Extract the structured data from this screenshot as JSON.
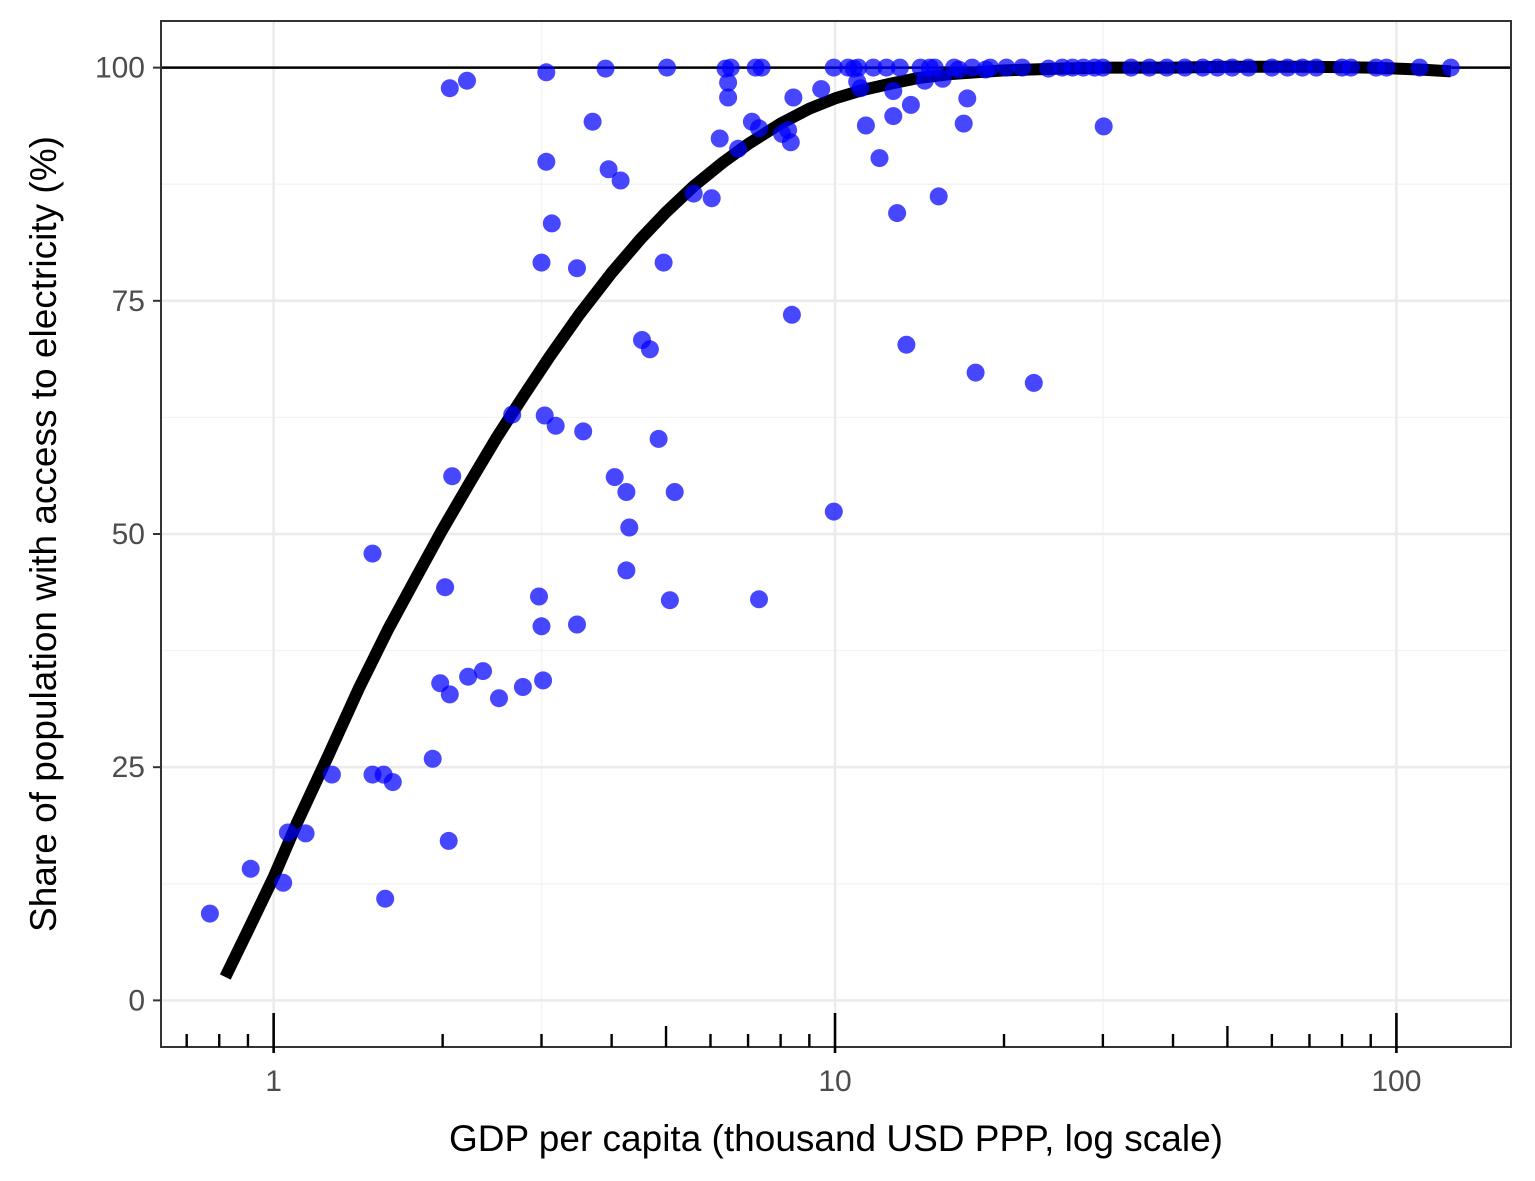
{
  "chart_data": {
    "type": "scatter",
    "title": "",
    "xlabel": "GDP per capita (thousand USD PPP, log scale)",
    "ylabel": "Share of population with access to electricity (%)",
    "x_scale": "log",
    "xlim": [
      0.63,
      160
    ],
    "ylim": [
      -5,
      105
    ],
    "x_ticks": [
      1,
      10,
      100
    ],
    "x_tick_labels": [
      "1",
      "10",
      "100"
    ],
    "y_ticks": [
      0,
      25,
      50,
      75,
      100
    ],
    "y_tick_labels": [
      "0",
      "25",
      "50",
      "75",
      "100"
    ],
    "grid": true,
    "reference_line_y": 100,
    "point_color": "#0000ff",
    "trend_color": "#000000",
    "points": [
      [
        0.77,
        9.3
      ],
      [
        0.91,
        14.1
      ],
      [
        1.04,
        12.6
      ],
      [
        1.06,
        18.0
      ],
      [
        1.14,
        17.9
      ],
      [
        1.27,
        24.2
      ],
      [
        1.5,
        47.9
      ],
      [
        1.5,
        24.2
      ],
      [
        1.57,
        24.2
      ],
      [
        1.58,
        10.9
      ],
      [
        1.63,
        23.4
      ],
      [
        1.92,
        25.9
      ],
      [
        1.98,
        34.0
      ],
      [
        2.02,
        44.3
      ],
      [
        2.05,
        17.1
      ],
      [
        2.06,
        32.8
      ],
      [
        2.06,
        97.8
      ],
      [
        2.08,
        56.2
      ],
      [
        2.21,
        98.6
      ],
      [
        2.22,
        34.7
      ],
      [
        2.36,
        35.3
      ],
      [
        2.52,
        32.4
      ],
      [
        2.66,
        62.8
      ],
      [
        2.78,
        33.6
      ],
      [
        2.97,
        43.3
      ],
      [
        3.0,
        40.1
      ],
      [
        3.0,
        79.1
      ],
      [
        3.02,
        34.3
      ],
      [
        3.04,
        62.7
      ],
      [
        3.06,
        99.5
      ],
      [
        3.06,
        89.9
      ],
      [
        3.13,
        83.3
      ],
      [
        3.18,
        61.6
      ],
      [
        3.47,
        40.3
      ],
      [
        3.47,
        78.5
      ],
      [
        3.56,
        61.0
      ],
      [
        3.7,
        94.2
      ],
      [
        3.9,
        99.9
      ],
      [
        3.95,
        89.1
      ],
      [
        4.05,
        56.1
      ],
      [
        4.15,
        87.9
      ],
      [
        4.25,
        54.5
      ],
      [
        4.25,
        46.1
      ],
      [
        4.3,
        50.7
      ],
      [
        4.53,
        70.8
      ],
      [
        4.68,
        69.8
      ],
      [
        4.85,
        60.2
      ],
      [
        4.95,
        79.1
      ],
      [
        5.02,
        100
      ],
      [
        5.08,
        42.9
      ],
      [
        5.18,
        54.5
      ],
      [
        5.6,
        86.5
      ],
      [
        6.03,
        86.0
      ],
      [
        6.23,
        92.4
      ],
      [
        6.38,
        99.9
      ],
      [
        6.45,
        98.4
      ],
      [
        6.45,
        96.8
      ],
      [
        6.52,
        100
      ],
      [
        6.72,
        91.3
      ],
      [
        7.11,
        94.2
      ],
      [
        7.22,
        100
      ],
      [
        7.32,
        93.5
      ],
      [
        7.32,
        43.0
      ],
      [
        7.4,
        100
      ],
      [
        8.05,
        92.9
      ],
      [
        8.25,
        93.3
      ],
      [
        8.34,
        92.0
      ],
      [
        8.38,
        73.5
      ],
      [
        8.43,
        96.8
      ],
      [
        9.45,
        97.7
      ],
      [
        9.95,
        100
      ],
      [
        9.95,
        52.4
      ],
      [
        10.55,
        100
      ],
      [
        10.8,
        99.9
      ],
      [
        10.95,
        98.5
      ],
      [
        11.0,
        100
      ],
      [
        11.1,
        97.8
      ],
      [
        11.35,
        93.8
      ],
      [
        11.7,
        100
      ],
      [
        12.0,
        90.3
      ],
      [
        12.35,
        100
      ],
      [
        12.7,
        97.5
      ],
      [
        12.7,
        94.8
      ],
      [
        12.9,
        84.4
      ],
      [
        13.05,
        100
      ],
      [
        13.4,
        70.3
      ],
      [
        13.65,
        96.0
      ],
      [
        14.2,
        100
      ],
      [
        14.45,
        98.6
      ],
      [
        14.75,
        100
      ],
      [
        15.05,
        100
      ],
      [
        15.3,
        86.2
      ],
      [
        15.55,
        98.8
      ],
      [
        16.3,
        100
      ],
      [
        16.6,
        99.8
      ],
      [
        16.95,
        94.0
      ],
      [
        17.2,
        96.7
      ],
      [
        17.55,
        100
      ],
      [
        17.8,
        67.3
      ],
      [
        18.55,
        99.8
      ],
      [
        18.9,
        100
      ],
      [
        20.2,
        100
      ],
      [
        21.55,
        100
      ],
      [
        22.6,
        66.2
      ],
      [
        24.0,
        99.9
      ],
      [
        25.4,
        100
      ],
      [
        26.5,
        100
      ],
      [
        27.7,
        100
      ],
      [
        29.0,
        100
      ],
      [
        30.0,
        100
      ],
      [
        30.1,
        93.7
      ],
      [
        33.7,
        100
      ],
      [
        36.3,
        100
      ],
      [
        39.0,
        100
      ],
      [
        42.0,
        100
      ],
      [
        45.2,
        100
      ],
      [
        48.0,
        100
      ],
      [
        51.0,
        100
      ],
      [
        54.5,
        100
      ],
      [
        60.0,
        100
      ],
      [
        64.0,
        100
      ],
      [
        68.0,
        100
      ],
      [
        72.0,
        100
      ],
      [
        80.0,
        100
      ],
      [
        83.0,
        100
      ],
      [
        92.0,
        100
      ],
      [
        96.0,
        100
      ],
      [
        110.0,
        100
      ],
      [
        125.0,
        100
      ]
    ],
    "trend_line": [
      [
        0.82,
        2.5
      ],
      [
        0.9,
        7.5
      ],
      [
        1.0,
        13.2
      ],
      [
        1.1,
        19.0
      ],
      [
        1.25,
        26.2
      ],
      [
        1.42,
        33.5
      ],
      [
        1.6,
        39.8
      ],
      [
        1.8,
        45.5
      ],
      [
        2.0,
        50.5
      ],
      [
        2.25,
        55.8
      ],
      [
        2.5,
        60.4
      ],
      [
        2.8,
        65.0
      ],
      [
        3.1,
        69.0
      ],
      [
        3.5,
        73.5
      ],
      [
        4.0,
        78.0
      ],
      [
        4.5,
        81.6
      ],
      [
        5.0,
        84.5
      ],
      [
        5.6,
        87.3
      ],
      [
        6.3,
        89.8
      ],
      [
        7.0,
        91.8
      ],
      [
        8.0,
        94.0
      ],
      [
        9.0,
        95.6
      ],
      [
        10.0,
        96.7
      ],
      [
        11.2,
        97.6
      ],
      [
        12.6,
        98.3
      ],
      [
        14.1,
        98.9
      ],
      [
        16.0,
        99.3
      ],
      [
        20.0,
        99.7
      ],
      [
        25.0,
        99.9
      ],
      [
        30.0,
        100.0
      ],
      [
        40.0,
        100.0
      ],
      [
        50.0,
        100.1
      ],
      [
        70.0,
        100.1
      ],
      [
        90.0,
        100.0
      ],
      [
        110.0,
        99.8
      ],
      [
        125.0,
        99.6
      ]
    ]
  }
}
